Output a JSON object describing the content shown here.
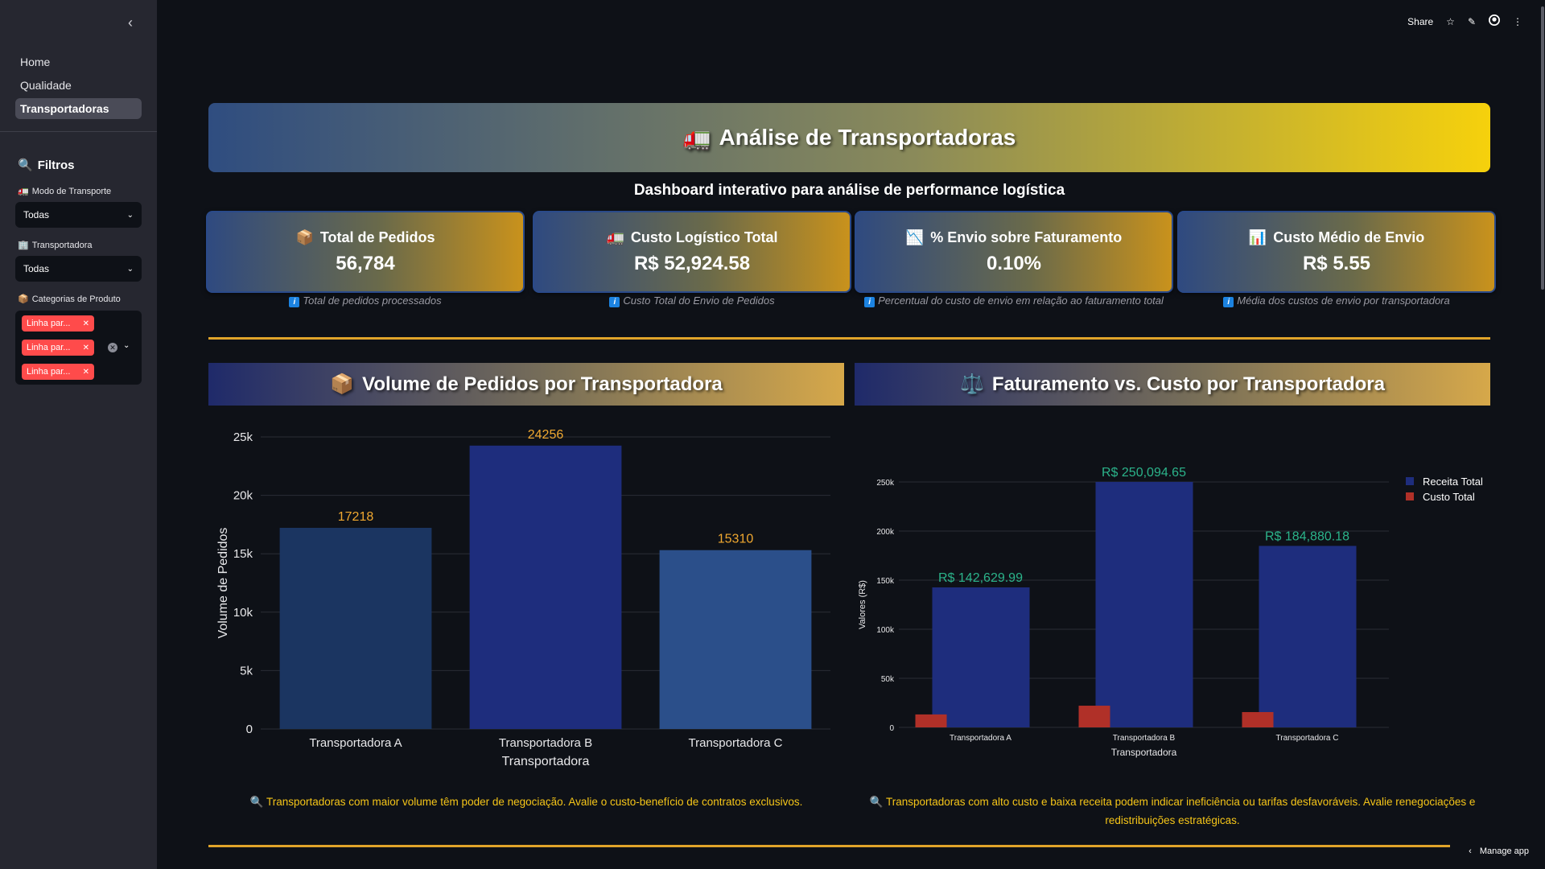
{
  "sidebar": {
    "nav": [
      {
        "label": "Home",
        "active": false
      },
      {
        "label": "Qualidade",
        "active": false
      },
      {
        "label": "Transportadoras",
        "active": true
      }
    ],
    "filters_title": "Filtros",
    "transport_mode_label": "Modo de Transporte",
    "transport_mode_value": "Todas",
    "carrier_label": "Transportadora",
    "carrier_value": "Todas",
    "categories_label": "Categorias de Produto",
    "category_tags": [
      "Linha par...",
      "Linha par...",
      "Linha par..."
    ]
  },
  "topbar": {
    "share": "Share"
  },
  "header": {
    "icon": "🚛",
    "title": "Análise de Transportadoras",
    "subtitle": "Dashboard interativo para análise de performance logística"
  },
  "kpis": [
    {
      "icon": "📦",
      "title": "Total de Pedidos",
      "value": "56,784",
      "note": "Total de pedidos processados"
    },
    {
      "icon": "🚛",
      "title": "Custo Logístico Total",
      "value": "R$ 52,924.58",
      "note": "Custo Total do Envio de Pedidos"
    },
    {
      "icon": "📉",
      "title": "% Envio sobre Faturamento",
      "value": "0.10%",
      "note": "Percentual do custo de envio em relação ao faturamento total"
    },
    {
      "icon": "📊",
      "title": "Custo Médio de Envio",
      "value": "R$ 5.55",
      "note": "Média dos custos de envio por transportadora"
    }
  ],
  "sections": {
    "volume_title": "Volume de Pedidos por Transportadora",
    "volume_icon": "📦",
    "revenue_title": "Faturamento vs. Custo por Transportadora",
    "revenue_icon": "⚖️"
  },
  "insights": {
    "volume": "🔍 Transportadoras com maior volume têm poder de negociação. Avalie o custo-benefício de contratos exclusivos.",
    "revenue_line1": "🔍 Transportadoras com alto custo e baixa receita podem indicar ineficiência ou tarifas desfavoráveis. Avalie renegociações e",
    "revenue_line2": "redistribuições estratégicas."
  },
  "footer": {
    "manage_app": "Manage app"
  },
  "colors": {
    "bar_a": "#1b3561",
    "bar_b": "#1e2d7d",
    "bar_c": "#2b4f8a",
    "revenue": "#1e2d7d",
    "cost": "#b03028",
    "volume_label": "#f0a830",
    "revenue_label": "#2bb38a",
    "accent": "#e0a42a"
  },
  "chart_data": [
    {
      "type": "bar",
      "categories": [
        "Transportadora A",
        "Transportadora B",
        "Transportadora C"
      ],
      "values": [
        17218,
        24256,
        15310
      ],
      "data_labels": [
        "17218",
        "24256",
        "15310"
      ],
      "xlabel": "Transportadora",
      "ylabel": "Volume de Pedidos",
      "ylim": [
        0,
        25000
      ],
      "yticks": [
        0,
        5000,
        10000,
        15000,
        20000,
        25000
      ],
      "ytick_labels": [
        "0",
        "5k",
        "10k",
        "15k",
        "20k",
        "25k"
      ],
      "grid": true
    },
    {
      "type": "bar",
      "categories": [
        "Transportadora A",
        "Transportadora B",
        "Transportadora C"
      ],
      "series": [
        {
          "name": "Receita Total",
          "values": [
            142629.99,
            250094.65,
            184880.18
          ],
          "labels": [
            "R$ 142,629.99",
            "R$ 250,094.65",
            "R$ 184,880.18"
          ]
        },
        {
          "name": "Custo Total",
          "values": [
            13200,
            22100,
            15600
          ]
        }
      ],
      "xlabel": "Transportadora",
      "ylabel": "Valores (R$)",
      "ylim": [
        0,
        250000
      ],
      "yticks": [
        0,
        50000,
        100000,
        150000,
        200000,
        250000
      ],
      "ytick_labels": [
        "0",
        "50k",
        "100k",
        "150k",
        "200k",
        "250k"
      ],
      "legend": "top-right",
      "grid": true
    }
  ]
}
